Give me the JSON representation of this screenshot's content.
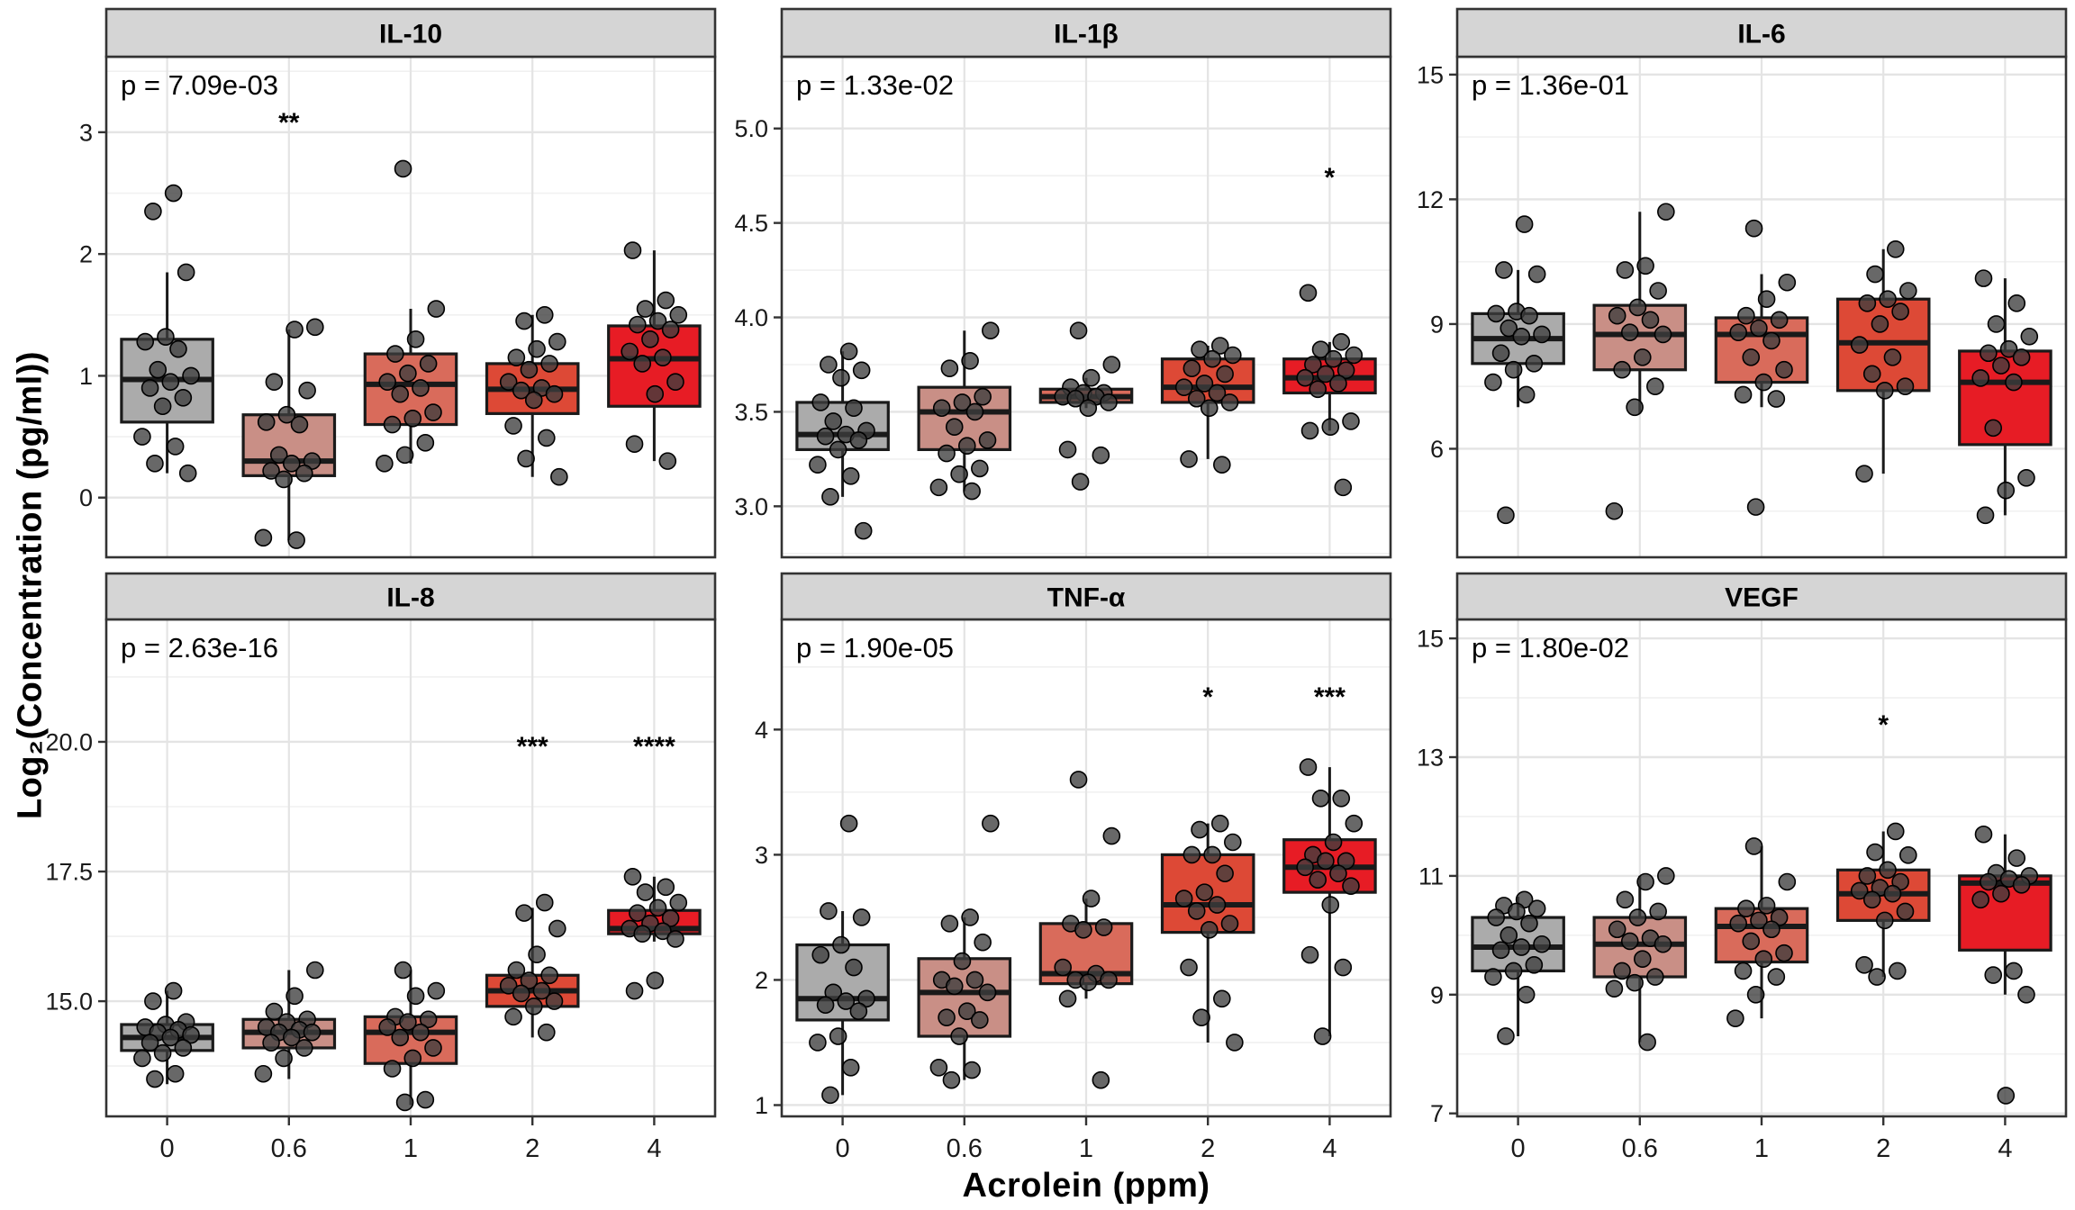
{
  "figure": {
    "ylabel": "Log₂(Concentration (pg/ml))",
    "xlabel": "Acrolein (ppm)"
  },
  "style": {
    "box_fills": [
      "#ABABAB",
      "#C98F86",
      "#D96B5B",
      "#DD4936",
      "#E71C25"
    ],
    "panel_header_bg": "#D5D5D5",
    "panel_border": "#333333",
    "box_stroke": "#1A1A1A",
    "point_fill": "#3D3D3D",
    "point_stroke": "#000000",
    "grid_major": "#E4E4E4",
    "grid_minor": "#F1F1F1",
    "text_color": "#000000",
    "tick_color": "#333333"
  },
  "chart_data": [
    {
      "type": "box",
      "title": "IL-10",
      "p_label": "p = 7.09e-03",
      "categories": [
        "0",
        "0.6",
        "1",
        "2",
        "4"
      ],
      "ylim": [
        -0.49,
        3.62
      ],
      "yticks": [
        0,
        1,
        2,
        3
      ],
      "ytick_labels": [
        "0",
        "1",
        "2",
        "3"
      ],
      "show_x_labels": false,
      "stars": [
        {
          "group": 1,
          "y": 3.14,
          "label": "**"
        }
      ],
      "boxes": [
        {
          "lw": 0.2,
          "q1": 0.62,
          "med": 0.97,
          "q3": 1.3,
          "uw": 1.85
        },
        {
          "lw": -0.35,
          "q1": 0.18,
          "med": 0.3,
          "q3": 0.68,
          "uw": 1.38
        },
        {
          "lw": 0.28,
          "q1": 0.6,
          "med": 0.93,
          "q3": 1.18,
          "uw": 1.55
        },
        {
          "lw": 0.17,
          "q1": 0.69,
          "med": 0.89,
          "q3": 1.1,
          "uw": 1.5
        },
        {
          "lw": 0.3,
          "q1": 0.75,
          "med": 1.14,
          "q3": 1.41,
          "uw": 2.03
        }
      ],
      "points": [
        [
          2.5,
          2.35,
          1.85,
          1.32,
          1.28,
          1.22,
          1.05,
          1.0,
          0.95,
          0.9,
          0.82,
          0.75,
          0.5,
          0.42,
          0.28,
          0.2
        ],
        [
          1.4,
          1.38,
          0.95,
          0.88,
          0.68,
          0.62,
          0.6,
          0.35,
          0.3,
          0.28,
          0.22,
          0.2,
          0.15,
          -0.33,
          -0.35
        ],
        [
          2.7,
          1.55,
          1.3,
          1.18,
          1.1,
          1.02,
          0.95,
          0.9,
          0.85,
          0.7,
          0.65,
          0.6,
          0.45,
          0.35,
          0.28
        ],
        [
          1.5,
          1.45,
          1.28,
          1.22,
          1.15,
          1.1,
          1.05,
          0.95,
          0.9,
          0.88,
          0.85,
          0.8,
          0.59,
          0.49,
          0.32,
          0.17
        ],
        [
          2.03,
          1.62,
          1.55,
          1.5,
          1.45,
          1.42,
          1.38,
          1.3,
          1.2,
          1.15,
          1.1,
          0.95,
          0.85,
          0.44,
          0.3
        ]
      ]
    },
    {
      "type": "box",
      "title": "IL-1β",
      "p_label": "p = 1.33e-02",
      "categories": [
        "0",
        "0.6",
        "1",
        "2",
        "4"
      ],
      "ylim": [
        2.73,
        5.38
      ],
      "yticks": [
        3.0,
        3.5,
        4.0,
        4.5,
        5.0
      ],
      "ytick_labels": [
        "3.0",
        "3.5",
        "4.0",
        "4.5",
        "5.0"
      ],
      "show_x_labels": false,
      "stars": [
        {
          "group": 4,
          "y": 4.78,
          "label": "*"
        }
      ],
      "boxes": [
        {
          "lw": 3.05,
          "q1": 3.3,
          "med": 3.38,
          "q3": 3.55,
          "uw": 3.82
        },
        {
          "lw": 3.08,
          "q1": 3.3,
          "med": 3.5,
          "q3": 3.63,
          "uw": 3.93
        },
        {
          "lw": 3.52,
          "q1": 3.55,
          "med": 3.58,
          "q3": 3.62,
          "uw": 3.68
        },
        {
          "lw": 3.25,
          "q1": 3.55,
          "med": 3.63,
          "q3": 3.78,
          "uw": 3.85
        },
        {
          "lw": 3.4,
          "q1": 3.6,
          "med": 3.68,
          "q3": 3.78,
          "uw": 3.87
        }
      ],
      "points": [
        [
          3.82,
          3.75,
          3.72,
          3.68,
          3.55,
          3.52,
          3.45,
          3.4,
          3.38,
          3.37,
          3.35,
          3.3,
          3.22,
          3.16,
          3.05,
          2.87
        ],
        [
          3.93,
          3.77,
          3.73,
          3.58,
          3.55,
          3.52,
          3.5,
          3.42,
          3.35,
          3.32,
          3.28,
          3.2,
          3.17,
          3.1,
          3.08
        ],
        [
          3.93,
          3.75,
          3.68,
          3.63,
          3.6,
          3.6,
          3.58,
          3.58,
          3.57,
          3.55,
          3.52,
          3.3,
          3.27,
          3.13
        ],
        [
          3.85,
          3.83,
          3.8,
          3.78,
          3.73,
          3.7,
          3.65,
          3.63,
          3.6,
          3.57,
          3.55,
          3.52,
          3.25,
          3.22
        ],
        [
          4.13,
          3.87,
          3.83,
          3.8,
          3.78,
          3.75,
          3.72,
          3.7,
          3.68,
          3.65,
          3.62,
          3.45,
          3.42,
          3.4,
          3.1
        ]
      ]
    },
    {
      "type": "box",
      "title": "IL-6",
      "p_label": "p = 1.36e-01",
      "categories": [
        "0",
        "0.6",
        "1",
        "2",
        "4"
      ],
      "ylim": [
        3.39,
        15.43
      ],
      "yticks": [
        6,
        9,
        12,
        15
      ],
      "ytick_labels": [
        "6",
        "9",
        "12",
        "15"
      ],
      "show_x_labels": false,
      "stars": [],
      "boxes": [
        {
          "lw": 7.0,
          "q1": 8.05,
          "med": 8.65,
          "q3": 9.25,
          "uw": 10.3
        },
        {
          "lw": 6.85,
          "q1": 7.9,
          "med": 8.75,
          "q3": 9.45,
          "uw": 11.7
        },
        {
          "lw": 7.0,
          "q1": 7.6,
          "med": 8.75,
          "q3": 9.15,
          "uw": 10.2
        },
        {
          "lw": 5.4,
          "q1": 7.4,
          "med": 8.55,
          "q3": 9.6,
          "uw": 10.8
        },
        {
          "lw": 4.4,
          "q1": 6.1,
          "med": 7.6,
          "q3": 8.35,
          "uw": 10.1
        }
      ],
      "points": [
        [
          11.4,
          10.3,
          10.2,
          9.3,
          9.25,
          9.2,
          8.9,
          8.75,
          8.7,
          8.3,
          8.05,
          7.9,
          7.6,
          7.3,
          4.4
        ],
        [
          11.7,
          10.4,
          10.3,
          9.8,
          9.4,
          9.2,
          9.1,
          8.8,
          8.75,
          8.2,
          7.9,
          7.5,
          7.0,
          4.5
        ],
        [
          11.3,
          10.0,
          9.6,
          9.2,
          9.1,
          8.9,
          8.8,
          8.6,
          8.2,
          7.9,
          7.6,
          7.3,
          7.2,
          4.6
        ],
        [
          10.8,
          10.2,
          9.8,
          9.6,
          9.5,
          9.3,
          9.0,
          8.5,
          8.2,
          7.8,
          7.5,
          7.4,
          5.4
        ],
        [
          10.1,
          9.5,
          9.0,
          8.7,
          8.4,
          8.3,
          8.2,
          8.0,
          7.7,
          7.6,
          6.5,
          5.3,
          5.0,
          4.4
        ]
      ]
    },
    {
      "type": "box",
      "title": "IL-8",
      "p_label": "p = 2.63e-16",
      "categories": [
        "0",
        "0.6",
        "1",
        "2",
        "4"
      ],
      "ylim": [
        12.78,
        22.36
      ],
      "yticks": [
        15.0,
        17.5,
        20.0
      ],
      "ytick_labels": [
        "15.0",
        "17.5",
        "20.0"
      ],
      "show_x_labels": true,
      "stars": [
        {
          "group": 3,
          "y": 20.05,
          "label": "***"
        },
        {
          "group": 4,
          "y": 20.05,
          "label": "****"
        }
      ],
      "boxes": [
        {
          "lw": 13.4,
          "q1": 14.05,
          "med": 14.3,
          "q3": 14.55,
          "uw": 15.2
        },
        {
          "lw": 13.5,
          "q1": 14.1,
          "med": 14.4,
          "q3": 14.65,
          "uw": 15.6
        },
        {
          "lw": 13.0,
          "q1": 13.8,
          "med": 14.4,
          "q3": 14.7,
          "uw": 15.6
        },
        {
          "lw": 14.3,
          "q1": 14.9,
          "med": 15.2,
          "q3": 15.5,
          "uw": 16.8
        },
        {
          "lw": 16.15,
          "q1": 16.3,
          "med": 16.4,
          "q3": 16.75,
          "uw": 17.4
        }
      ],
      "points": [
        [
          15.2,
          15.0,
          14.6,
          14.55,
          14.5,
          14.45,
          14.4,
          14.35,
          14.3,
          14.2,
          14.1,
          14.0,
          13.9,
          13.6,
          13.5
        ],
        [
          15.6,
          15.1,
          14.8,
          14.65,
          14.6,
          14.5,
          14.45,
          14.4,
          14.4,
          14.3,
          14.2,
          14.1,
          13.9,
          13.6
        ],
        [
          15.6,
          15.2,
          15.1,
          14.7,
          14.65,
          14.6,
          14.5,
          14.4,
          14.3,
          14.1,
          13.9,
          13.7,
          13.1,
          13.05
        ],
        [
          16.9,
          16.7,
          16.4,
          15.9,
          15.6,
          15.5,
          15.4,
          15.3,
          15.2,
          15.15,
          15.0,
          14.9,
          14.7,
          14.4
        ],
        [
          17.4,
          17.2,
          17.1,
          16.9,
          16.8,
          16.7,
          16.6,
          16.5,
          16.4,
          16.35,
          16.3,
          16.2,
          15.4,
          15.2
        ]
      ]
    },
    {
      "type": "box",
      "title": "TNF-α",
      "p_label": "p = 1.90e-05",
      "categories": [
        "0",
        "0.6",
        "1",
        "2",
        "4"
      ],
      "ylim": [
        0.91,
        4.88
      ],
      "yticks": [
        1,
        2,
        3,
        4
      ],
      "ytick_labels": [
        "1",
        "2",
        "3",
        "4"
      ],
      "show_x_labels": true,
      "stars": [
        {
          "group": 3,
          "y": 4.32,
          "label": "*"
        },
        {
          "group": 4,
          "y": 4.32,
          "label": "***"
        }
      ],
      "boxes": [
        {
          "lw": 1.08,
          "q1": 1.68,
          "med": 1.85,
          "q3": 2.28,
          "uw": 2.55
        },
        {
          "lw": 1.2,
          "q1": 1.55,
          "med": 1.9,
          "q3": 2.17,
          "uw": 2.5
        },
        {
          "lw": 1.85,
          "q1": 1.97,
          "med": 2.05,
          "q3": 2.45,
          "uw": 2.65
        },
        {
          "lw": 1.5,
          "q1": 2.38,
          "med": 2.6,
          "q3": 3.0,
          "uw": 3.25
        },
        {
          "lw": 1.55,
          "q1": 2.7,
          "med": 2.9,
          "q3": 3.12,
          "uw": 3.7
        }
      ],
      "points": [
        [
          3.25,
          2.55,
          2.5,
          2.28,
          2.2,
          2.1,
          1.9,
          1.85,
          1.83,
          1.8,
          1.75,
          1.55,
          1.5,
          1.3,
          1.08
        ],
        [
          3.25,
          2.5,
          2.45,
          2.3,
          2.15,
          2.0,
          2.0,
          1.95,
          1.9,
          1.75,
          1.7,
          1.68,
          1.55,
          1.3,
          1.28,
          1.2
        ],
        [
          3.6,
          3.15,
          2.65,
          2.45,
          2.42,
          2.4,
          2.1,
          2.05,
          2.0,
          2.0,
          1.98,
          1.85,
          1.2
        ],
        [
          3.25,
          3.2,
          3.1,
          3.0,
          3.0,
          2.85,
          2.7,
          2.65,
          2.6,
          2.55,
          2.45,
          2.4,
          2.1,
          1.85,
          1.7,
          1.5
        ],
        [
          3.7,
          3.45,
          3.45,
          3.25,
          3.1,
          3.0,
          2.95,
          2.95,
          2.9,
          2.85,
          2.8,
          2.75,
          2.6,
          2.2,
          2.1,
          1.55
        ]
      ]
    },
    {
      "type": "box",
      "title": "VEGF",
      "p_label": "p = 1.80e-02",
      "categories": [
        "0",
        "0.6",
        "1",
        "2",
        "4"
      ],
      "ylim": [
        6.95,
        15.32
      ],
      "yticks": [
        7,
        9,
        11,
        13,
        15
      ],
      "ytick_labels": [
        "7",
        "9",
        "11",
        "13",
        "15"
      ],
      "show_x_labels": true,
      "stars": [
        {
          "group": 3,
          "y": 13.67,
          "label": "*"
        }
      ],
      "boxes": [
        {
          "lw": 8.3,
          "q1": 9.4,
          "med": 9.8,
          "q3": 10.3,
          "uw": 10.65
        },
        {
          "lw": 8.2,
          "q1": 9.3,
          "med": 9.85,
          "q3": 10.3,
          "uw": 11.0
        },
        {
          "lw": 8.6,
          "q1": 9.55,
          "med": 10.15,
          "q3": 10.45,
          "uw": 11.5
        },
        {
          "lw": 9.3,
          "q1": 10.25,
          "med": 10.7,
          "q3": 11.1,
          "uw": 11.75
        },
        {
          "lw": 9.0,
          "q1": 9.75,
          "med": 10.88,
          "q3": 11.0,
          "uw": 11.7
        }
      ],
      "points": [
        [
          10.6,
          10.5,
          10.45,
          10.4,
          10.3,
          10.2,
          10.0,
          9.85,
          9.8,
          9.75,
          9.5,
          9.4,
          9.3,
          9.0,
          8.3
        ],
        [
          11.0,
          10.9,
          10.6,
          10.4,
          10.3,
          10.1,
          9.95,
          9.9,
          9.85,
          9.6,
          9.4,
          9.3,
          9.2,
          9.1,
          8.2
        ],
        [
          11.5,
          10.9,
          10.5,
          10.45,
          10.3,
          10.25,
          10.2,
          10.1,
          9.9,
          9.7,
          9.6,
          9.4,
          9.3,
          9.0,
          8.6
        ],
        [
          11.75,
          11.4,
          11.35,
          11.1,
          11.0,
          10.9,
          10.8,
          10.75,
          10.7,
          10.6,
          10.4,
          10.25,
          9.5,
          9.4,
          9.3
        ],
        [
          11.7,
          11.3,
          11.05,
          11.0,
          10.95,
          10.9,
          10.85,
          10.7,
          10.6,
          9.4,
          9.33,
          9.0,
          7.3
        ]
      ]
    }
  ]
}
